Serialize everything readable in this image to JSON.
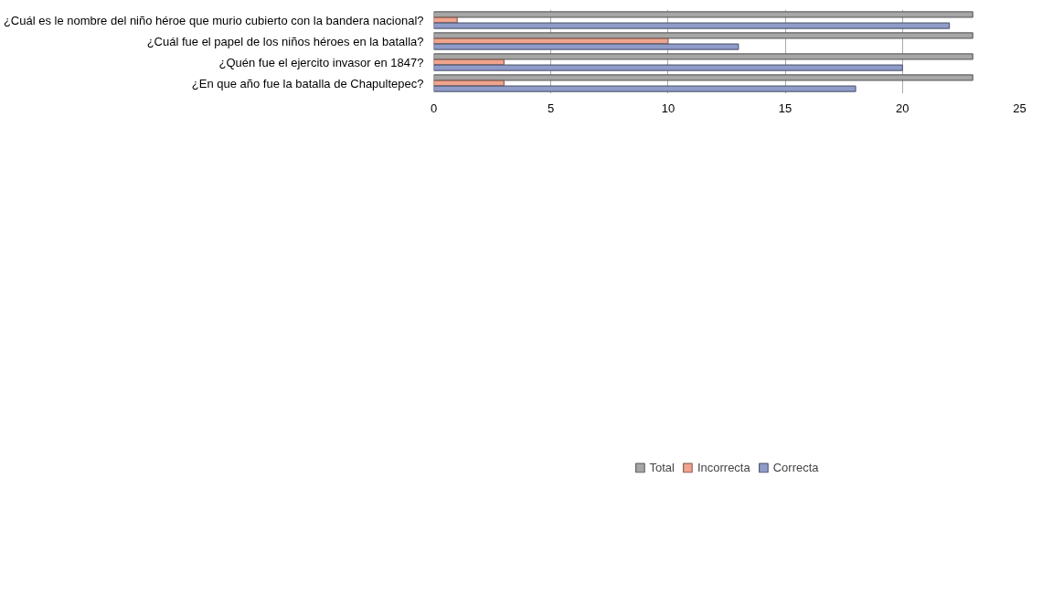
{
  "chart_data": {
    "type": "bar",
    "orientation": "horizontal",
    "categories": [
      "¿Cuál es le nombre del niño héroe que murio cubierto con la bandera nacional?",
      "¿Cuál fue el papel de los niños héroes en la batalla?",
      "¿Quén fue el ejercito invasor en 1847?",
      "¿En que año fue la batalla de Chapultepec?"
    ],
    "series": [
      {
        "name": "Total",
        "color": "#a6a6a6",
        "values": [
          23,
          23,
          23,
          23
        ]
      },
      {
        "name": "Incorrecta",
        "color": "#f0a48e",
        "values": [
          1,
          10,
          3,
          3
        ]
      },
      {
        "name": "Correcta",
        "color": "#8f9cc9",
        "values": [
          22,
          13,
          20,
          18
        ]
      }
    ],
    "xlim": [
      0,
      25
    ],
    "xticks": [
      0,
      5,
      10,
      15,
      20,
      25
    ],
    "grid": "x",
    "legend": "bottom"
  }
}
